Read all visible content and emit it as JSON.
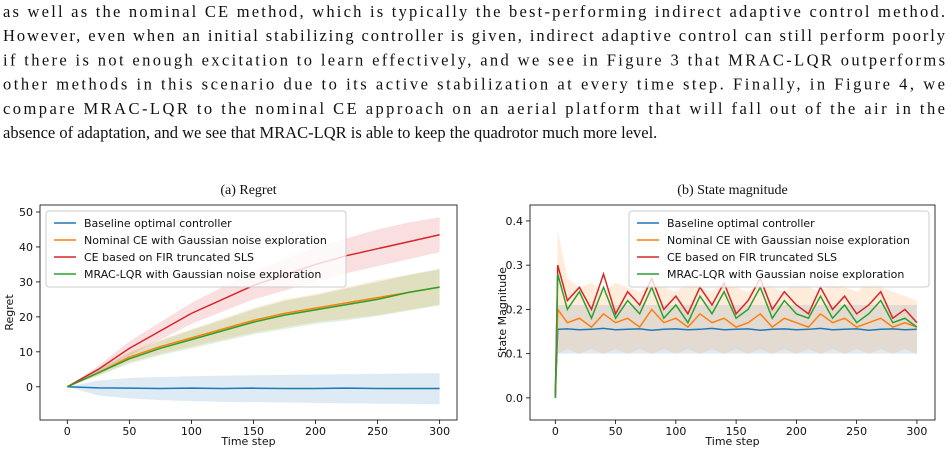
{
  "paragraph": [
    "as well as the nominal CE method, which is typically the best-performing indirect adaptive control method.",
    "However, even when an initial stabilizing controller is given, indirect adaptive control can still perform poorly",
    "if there is not enough excitation to learn effectively, and we see in Figure 3 that MRAC-LQR outperforms",
    "other methods in this scenario due to its active stabilization at every time step. Finally, in Figure 4, we",
    "compare MRAC-LQR to the nominal CE approach on an aerial platform that will fall out of the air in the",
    "absence of adaptation, and we see that MRAC-LQR is able to keep the quadrotor much more level."
  ],
  "chart_data": [
    {
      "type": "line",
      "title": "(a) Regret",
      "x_label": "Time step",
      "y_label": "Regret",
      "legend": "upper left",
      "x": [
        0,
        25,
        50,
        75,
        100,
        125,
        150,
        175,
        200,
        225,
        250,
        275,
        300
      ],
      "xlim": [
        -22,
        314
      ],
      "ylim": [
        -9.5,
        52
      ],
      "xticks": [
        0,
        50,
        100,
        150,
        200,
        250,
        300
      ],
      "yticks": [
        0,
        10,
        20,
        30,
        40,
        50
      ],
      "series": [
        {
          "name": "Baseline optimal controller",
          "color": "#1f77b4",
          "values": [
            0,
            -0.3,
            -0.4,
            -0.5,
            -0.4,
            -0.5,
            -0.4,
            -0.5,
            -0.5,
            -0.4,
            -0.5,
            -0.5,
            -0.5
          ],
          "lower": [
            0,
            -2.5,
            -3.3,
            -3.8,
            -4.1,
            -4.3,
            -4.4,
            -4.5,
            -4.6,
            -4.7,
            -4.8,
            -4.9,
            -5
          ],
          "upper": [
            0,
            1.8,
            2.5,
            2.8,
            3,
            3.2,
            3.3,
            3.4,
            3.5,
            3.6,
            3.7,
            3.8,
            3.9
          ]
        },
        {
          "name": "Nominal CE with Gaussian noise exploration",
          "color": "#ff7f0e",
          "values": [
            0,
            4,
            8.5,
            11.5,
            14,
            16.5,
            19,
            21,
            22.5,
            24,
            25.5,
            27,
            28.5
          ],
          "lower": [
            0,
            3.2,
            7,
            9.5,
            11.5,
            13.5,
            15.5,
            17,
            18.5,
            19.5,
            20.5,
            22,
            23.5
          ],
          "upper": [
            0,
            5,
            10,
            13.5,
            16.5,
            19.5,
            22.5,
            25,
            26.5,
            28.5,
            30.5,
            32,
            33.5
          ]
        },
        {
          "name": "CE based on FIR truncated SLS",
          "color": "#d62728",
          "values": [
            0,
            5,
            11,
            16,
            21,
            25,
            29,
            32,
            35,
            37.5,
            39.5,
            41.5,
            43.5
          ],
          "lower": [
            0,
            4,
            9,
            13.5,
            18,
            21.5,
            25,
            27.5,
            30,
            32.5,
            34.5,
            36.5,
            38.5
          ],
          "upper": [
            0,
            6,
            13,
            18.5,
            24,
            28.5,
            33,
            36.5,
            40,
            42.5,
            45,
            47,
            48.5
          ]
        },
        {
          "name": "MRAC-LQR with Gaussian noise exploration",
          "color": "#2ca02c",
          "values": [
            0,
            4,
            8,
            11,
            13.5,
            16,
            18.5,
            20.5,
            22,
            23.5,
            25,
            27,
            28.5
          ],
          "lower": [
            0,
            3.2,
            6.6,
            9,
            11,
            13,
            15,
            16.5,
            18,
            19,
            20.2,
            21.8,
            23.2
          ],
          "upper": [
            0,
            4.9,
            9.6,
            13.1,
            16.2,
            19.1,
            22.1,
            24.6,
            26.2,
            28.1,
            30,
            32,
            33.8
          ]
        }
      ]
    },
    {
      "type": "line",
      "title": "(b) State magnitude",
      "x_label": "Time step",
      "y_label": "State Magnitude",
      "legend": "upper right",
      "x": [
        0,
        2,
        10,
        20,
        30,
        40,
        50,
        60,
        70,
        80,
        90,
        100,
        110,
        120,
        130,
        140,
        150,
        160,
        170,
        180,
        190,
        200,
        210,
        220,
        230,
        240,
        250,
        260,
        270,
        280,
        290,
        300
      ],
      "xlim": [
        -21,
        315
      ],
      "ylim": [
        -0.05,
        0.436
      ],
      "xticks": [
        0,
        50,
        100,
        150,
        200,
        250,
        300
      ],
      "yticks": [
        {
          "value": 0,
          "label": "0.0"
        },
        0.1,
        0.2,
        0.3,
        0.4
      ],
      "series": [
        {
          "name": "Baseline optimal controller",
          "color": "#1f77b4",
          "values": [
            0,
            0.155,
            0.156,
            0.154,
            0.155,
            0.157,
            0.154,
            0.155,
            0.156,
            0.153,
            0.155,
            0.156,
            0.154,
            0.155,
            0.157,
            0.154,
            0.155,
            0.156,
            0.153,
            0.155,
            0.156,
            0.154,
            0.155,
            0.157,
            0.154,
            0.155,
            0.156,
            0.153,
            0.155,
            0.156,
            0.154,
            0.155
          ],
          "lower": [
            0,
            0.1,
            0.1,
            0.1,
            0.1,
            0.1,
            0.1,
            0.1,
            0.1,
            0.1,
            0.1,
            0.1,
            0.1,
            0.1,
            0.1,
            0.1,
            0.1,
            0.1,
            0.1,
            0.1,
            0.1,
            0.1,
            0.1,
            0.1,
            0.1,
            0.1,
            0.1,
            0.1,
            0.1,
            0.1,
            0.1,
            0.1
          ],
          "upper": [
            0,
            0.21,
            0.21,
            0.21,
            0.21,
            0.21,
            0.21,
            0.21,
            0.21,
            0.21,
            0.21,
            0.21,
            0.21,
            0.21,
            0.21,
            0.21,
            0.21,
            0.21,
            0.21,
            0.21,
            0.21,
            0.21,
            0.21,
            0.21,
            0.21,
            0.21,
            0.21,
            0.21,
            0.21,
            0.21,
            0.21,
            0.21
          ]
        },
        {
          "name": "Nominal CE with Gaussian noise exploration",
          "color": "#ff7f0e",
          "values": [
            0,
            0.2,
            0.17,
            0.18,
            0.16,
            0.19,
            0.17,
            0.18,
            0.16,
            0.2,
            0.17,
            0.18,
            0.16,
            0.19,
            0.17,
            0.18,
            0.16,
            0.17,
            0.19,
            0.16,
            0.18,
            0.17,
            0.16,
            0.19,
            0.17,
            0.18,
            0.16,
            0.17,
            0.18,
            0.16,
            0.17,
            0.16
          ],
          "lower": [
            0,
            0.1,
            0.11,
            0.1,
            0.11,
            0.1,
            0.11,
            0.1,
            0.11,
            0.1,
            0.11,
            0.1,
            0.11,
            0.1,
            0.11,
            0.1,
            0.11,
            0.1,
            0.11,
            0.1,
            0.11,
            0.1,
            0.11,
            0.1,
            0.11,
            0.1,
            0.11,
            0.1,
            0.11,
            0.1,
            0.11,
            0.1
          ],
          "upper": [
            0,
            0.38,
            0.27,
            0.25,
            0.26,
            0.24,
            0.26,
            0.25,
            0.24,
            0.26,
            0.25,
            0.24,
            0.26,
            0.25,
            0.24,
            0.26,
            0.25,
            0.24,
            0.26,
            0.25,
            0.24,
            0.26,
            0.25,
            0.24,
            0.26,
            0.25,
            0.24,
            0.26,
            0.25,
            0.24,
            0.23,
            0.22
          ]
        },
        {
          "name": "CE based on FIR truncated SLS",
          "color": "#d62728",
          "values": [
            0,
            0.3,
            0.22,
            0.25,
            0.2,
            0.28,
            0.19,
            0.24,
            0.21,
            0.27,
            0.2,
            0.23,
            0.19,
            0.25,
            0.21,
            0.26,
            0.19,
            0.22,
            0.27,
            0.2,
            0.24,
            0.21,
            0.19,
            0.25,
            0.2,
            0.23,
            0.19,
            0.21,
            0.24,
            0.18,
            0.2,
            0.17
          ]
        },
        {
          "name": "MRAC-LQR with Gaussian noise exploration",
          "color": "#2ca02c",
          "values": [
            0,
            0.28,
            0.2,
            0.24,
            0.18,
            0.25,
            0.18,
            0.22,
            0.19,
            0.25,
            0.18,
            0.21,
            0.17,
            0.23,
            0.19,
            0.24,
            0.18,
            0.2,
            0.25,
            0.18,
            0.22,
            0.19,
            0.18,
            0.23,
            0.18,
            0.21,
            0.17,
            0.19,
            0.22,
            0.17,
            0.18,
            0.16
          ]
        }
      ]
    }
  ]
}
